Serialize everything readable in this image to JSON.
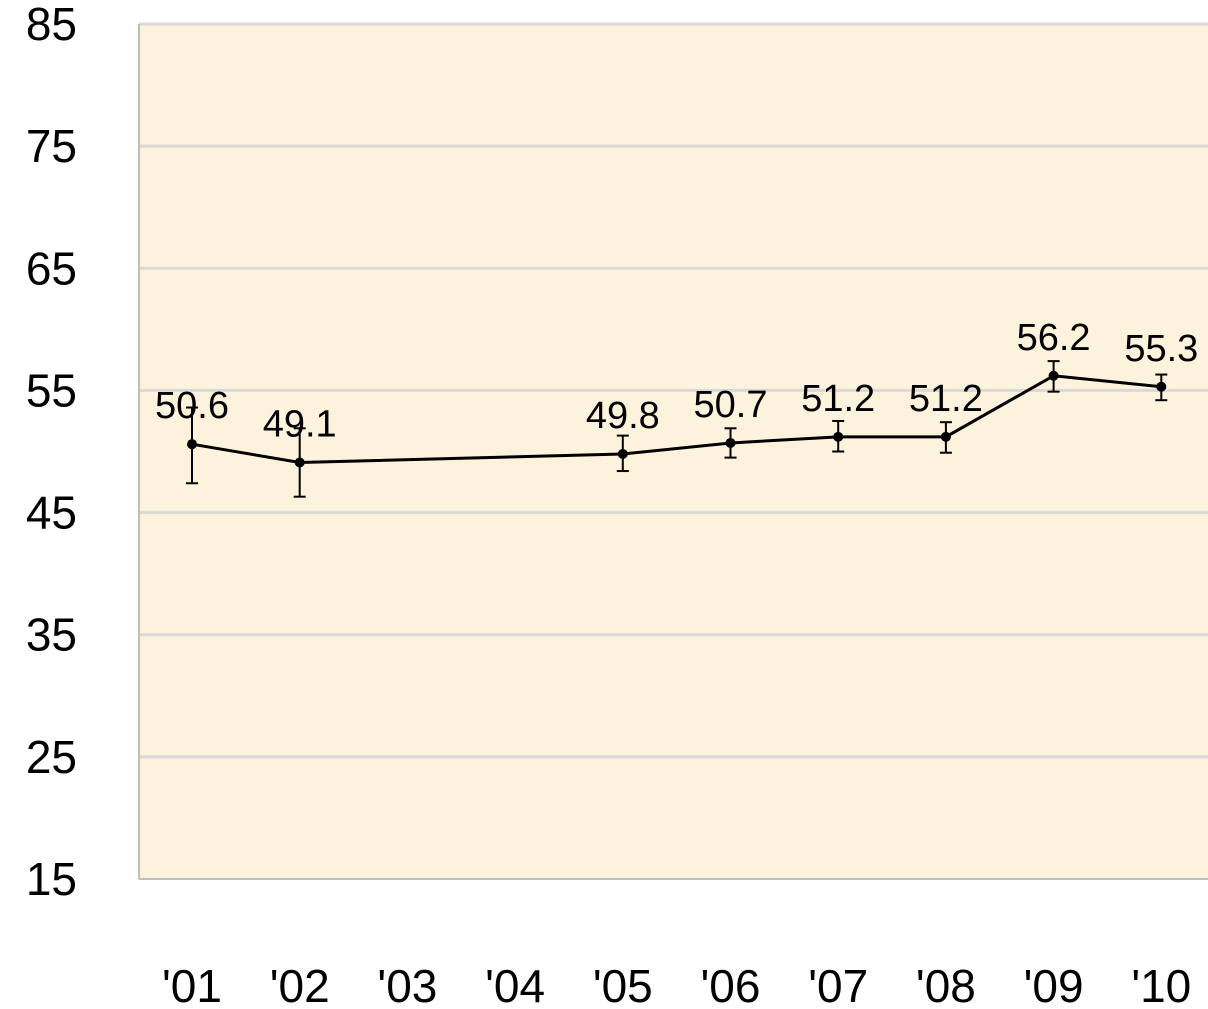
{
  "chart_data": {
    "type": "line",
    "title": "",
    "xlabel": "",
    "ylabel": "",
    "ylim": [
      15,
      85
    ],
    "yticks": [
      15,
      25,
      35,
      45,
      55,
      65,
      75,
      85
    ],
    "ytick_labels": [
      "15",
      "25",
      "35",
      "45",
      "55",
      "65",
      "75",
      "85"
    ],
    "categories": [
      "'01",
      "'02",
      "'03",
      "'04",
      "'05",
      "'06",
      "'07",
      "'08",
      "'09",
      "'10"
    ],
    "plot_background": "#fdf2dc",
    "grid": true,
    "legend": "none",
    "series": [
      {
        "color": "#000000",
        "points": [
          {
            "x": "'01",
            "y": 50.6,
            "label": "50.6",
            "err_low": 47.4,
            "err_high": 53.6
          },
          {
            "x": "'02",
            "y": 49.1,
            "label": "49.1",
            "err_low": 46.3,
            "err_high": 51.9
          },
          {
            "x": "'05",
            "y": 49.8,
            "label": "49.8",
            "err_low": 48.4,
            "err_high": 51.3
          },
          {
            "x": "'06",
            "y": 50.7,
            "label": "50.7",
            "err_low": 49.5,
            "err_high": 51.9
          },
          {
            "x": "'07",
            "y": 51.2,
            "label": "51.2",
            "err_low": 50.0,
            "err_high": 52.5
          },
          {
            "x": "'08",
            "y": 51.2,
            "label": "51.2",
            "err_low": 49.9,
            "err_high": 52.4
          },
          {
            "x": "'09",
            "y": 56.2,
            "label": "56.2",
            "err_low": 54.9,
            "err_high": 57.4
          },
          {
            "x": "'10",
            "y": 55.3,
            "label": "55.3",
            "err_low": 54.2,
            "err_high": 56.3
          }
        ]
      }
    ]
  }
}
